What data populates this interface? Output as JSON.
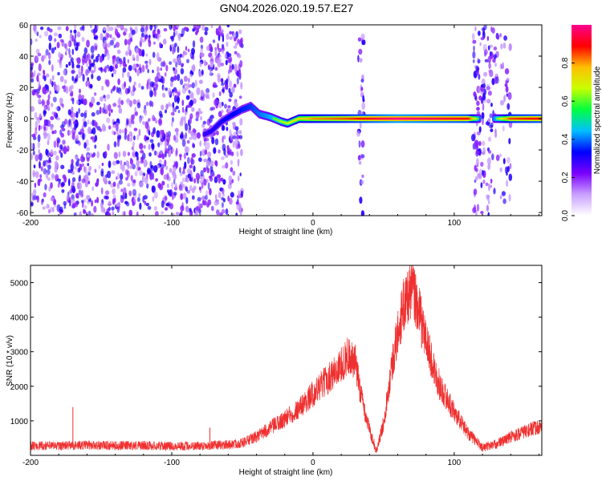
{
  "title": "GN04.2026.020.19.57.E27",
  "chart_data": [
    {
      "type": "heatmap",
      "xlabel": "Height of straight line (km)",
      "ylabel": "Frequency (Hz)",
      "xlim": [
        -200,
        162
      ],
      "ylim": [
        -62,
        60
      ],
      "xticks": [
        -200,
        -100,
        0,
        100
      ],
      "yticks": [
        60,
        40,
        20,
        0,
        -20,
        -40,
        -60
      ],
      "colorbar": {
        "label": "Normalized spectral amplitude",
        "range": [
          0,
          1
        ],
        "ticks": [
          0.0,
          0.2,
          0.4,
          0.6,
          0.8
        ],
        "colors": [
          "#ffffff",
          "#c9a0ff",
          "#7a00ff",
          "#0000ff",
          "#00c0ff",
          "#00ff40",
          "#c8ff00",
          "#ffc000",
          "#ff0000",
          "#ff0090"
        ]
      },
      "noise_regions": [
        {
          "x_from": -200,
          "x_to": -50,
          "intensity": 0.35
        },
        {
          "x_from": 32,
          "x_to": 36,
          "intensity": 0.3
        },
        {
          "x_from": 113,
          "x_to": 128,
          "intensity": 0.3
        },
        {
          "x_from": 128,
          "x_to": 140,
          "intensity": 0.15
        }
      ],
      "ridge": {
        "points": [
          [
            -77,
            -10
          ],
          [
            -72,
            -8
          ],
          [
            -65,
            -2
          ],
          [
            -58,
            2
          ],
          [
            -50,
            6
          ],
          [
            -44,
            8
          ],
          [
            -38,
            3
          ],
          [
            -30,
            1
          ],
          [
            -22,
            -2
          ],
          [
            -18,
            -3
          ],
          [
            -10,
            0
          ],
          [
            0,
            0
          ],
          [
            30,
            0
          ],
          [
            60,
            0
          ],
          [
            110,
            0
          ],
          [
            118,
            0
          ]
        ],
        "gap": [
          118,
          128
        ],
        "resume": [
          [
            128,
            0
          ],
          [
            162,
            0
          ]
        ],
        "amplitudes": [
          [
            -77,
            0.35
          ],
          [
            -45,
            0.45
          ],
          [
            -20,
            0.6
          ],
          [
            0,
            0.75
          ],
          [
            25,
            0.8
          ],
          [
            60,
            0.95
          ],
          [
            110,
            0.85
          ],
          [
            118,
            0.5
          ],
          [
            128,
            0.5
          ],
          [
            140,
            0.8
          ],
          [
            162,
            0.85
          ]
        ]
      }
    },
    {
      "type": "line",
      "xlabel": "Height of straight line (km)",
      "ylabel": "SNR (10 * v/v)",
      "xlim": [
        -200,
        162
      ],
      "ylim": [
        0,
        5500
      ],
      "xticks": [
        -200,
        -100,
        0,
        100
      ],
      "yticks": [
        1000,
        2000,
        3000,
        4000,
        5000
      ],
      "color": "#ef3030",
      "series": [
        {
          "name": "SNR",
          "x": [
            -200,
            -180,
            -160,
            -140,
            -120,
            -100,
            -80,
            -60,
            -50,
            -40,
            -30,
            -20,
            -10,
            0,
            10,
            20,
            25,
            30,
            35,
            40,
            45,
            50,
            55,
            60,
            65,
            70,
            75,
            80,
            85,
            90,
            100,
            110,
            120,
            130,
            140,
            150,
            162
          ],
          "y": [
            250,
            250,
            270,
            250,
            260,
            240,
            250,
            280,
            330,
            500,
            750,
            1000,
            1300,
            1700,
            2100,
            2500,
            2800,
            2500,
            1500,
            700,
            100,
            900,
            2300,
            3400,
            4300,
            4700,
            4000,
            3200,
            2500,
            1900,
            1200,
            600,
            200,
            300,
            500,
            650,
            800
          ]
        }
      ],
      "spikes": [
        [
          -170,
          1400
        ],
        [
          -73,
          800
        ],
        [
          30,
          3200
        ],
        [
          70,
          5400
        ]
      ]
    }
  ]
}
